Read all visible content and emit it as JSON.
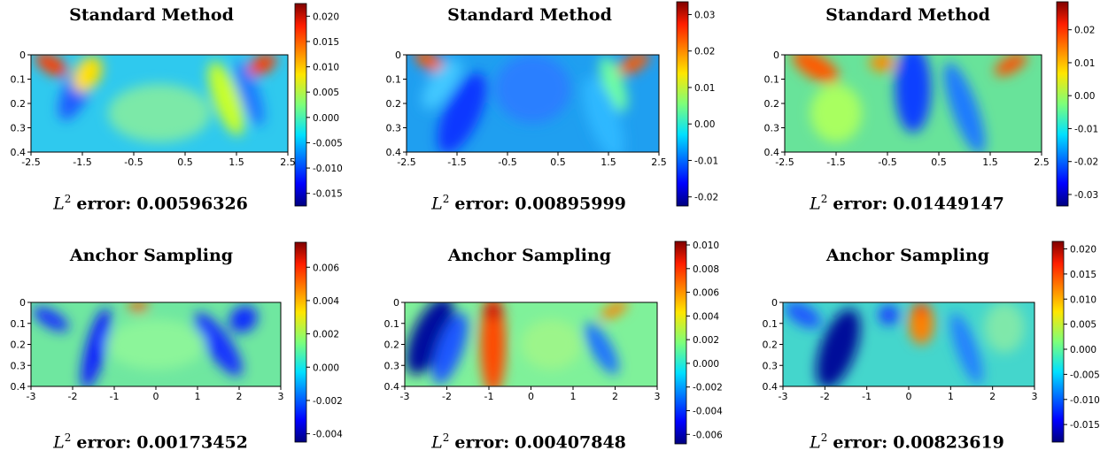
{
  "chart_data": [
    {
      "type": "heatmap",
      "title": "Standard Method",
      "x_ticks": [
        "-2.5",
        "-1.5",
        "-0.5",
        "0.5",
        "1.5",
        "2.5"
      ],
      "y_ticks": [
        "0",
        "0.1",
        "0.2",
        "0.3",
        "0.4"
      ],
      "xlim": [
        -2.5,
        2.5
      ],
      "ylim": [
        0.4,
        0
      ],
      "colorbar_ticks": [
        "0.020",
        "0.015",
        "0.010",
        "0.005",
        "0.000",
        "-0.005",
        "-0.010",
        "-0.015"
      ],
      "colorbar_range": [
        -0.0175,
        0.0225
      ],
      "error_label": "L",
      "error_exp": "2",
      "error_word": "error:",
      "error_value": "0.00596326"
    },
    {
      "type": "heatmap",
      "title": "Standard Method",
      "x_ticks": [
        "-2.5",
        "-1.5",
        "-0.5",
        "0.5",
        "1.5",
        "2.5"
      ],
      "y_ticks": [
        "0",
        "0.1",
        "0.2",
        "0.3",
        "0.4"
      ],
      "xlim": [
        -2.5,
        2.5
      ],
      "ylim": [
        0.4,
        0
      ],
      "colorbar_ticks": [
        "0.03",
        "0.02",
        "0.01",
        "0.00",
        "-0.01",
        "-0.02"
      ],
      "colorbar_range": [
        -0.0225,
        0.0335
      ],
      "error_label": "L",
      "error_exp": "2",
      "error_word": "error:",
      "error_value": "0.00895999"
    },
    {
      "type": "heatmap",
      "title": "Standard Method",
      "x_ticks": [
        "-2.5",
        "-1.5",
        "-0.5",
        "0.5",
        "1.5",
        "2.5"
      ],
      "y_ticks": [
        "0",
        "0.1",
        "0.2",
        "0.3",
        "0.4"
      ],
      "xlim": [
        -2.5,
        2.5
      ],
      "ylim": [
        0.4,
        0
      ],
      "colorbar_ticks": [
        "0.02",
        "0.01",
        "0.00",
        "-0.01",
        "-0.02",
        "-0.03"
      ],
      "colorbar_range": [
        -0.0335,
        0.0285
      ],
      "error_label": "L",
      "error_exp": "2",
      "error_word": "error:",
      "error_value": "0.01449147"
    },
    {
      "type": "heatmap",
      "title": "Anchor Sampling",
      "x_ticks": [
        "-3",
        "-2",
        "-1",
        "0",
        "1",
        "2",
        "3"
      ],
      "y_ticks": [
        "0",
        "0.1",
        "0.2",
        "0.3",
        "0.4"
      ],
      "xlim": [
        -3,
        3
      ],
      "ylim": [
        0.4,
        0
      ],
      "colorbar_ticks": [
        "0.006",
        "0.004",
        "0.002",
        "0.000",
        "-0.002",
        "-0.004"
      ],
      "colorbar_range": [
        -0.0045,
        0.0075
      ],
      "error_label": "L",
      "error_exp": "2",
      "error_word": "error:",
      "error_value": "0.00173452"
    },
    {
      "type": "heatmap",
      "title": "Anchor Sampling",
      "x_ticks": [
        "-3",
        "-2",
        "-1",
        "0",
        "1",
        "2",
        "3"
      ],
      "y_ticks": [
        "0",
        "0.1",
        "0.2",
        "0.3",
        "0.4"
      ],
      "xlim": [
        -3,
        3
      ],
      "ylim": [
        0.4,
        0
      ],
      "colorbar_ticks": [
        "0.010",
        "0.008",
        "0.006",
        "0.004",
        "0.002",
        "0.000",
        "-0.002",
        "-0.004",
        "-0.006"
      ],
      "colorbar_range": [
        -0.0068,
        0.0103
      ],
      "error_label": "L",
      "error_exp": "2",
      "error_word": "error:",
      "error_value": "0.00407848"
    },
    {
      "type": "heatmap",
      "title": "Anchor Sampling",
      "x_ticks": [
        "-3",
        "-2",
        "-1",
        "0",
        "1",
        "2",
        "3"
      ],
      "y_ticks": [
        "0",
        "0.1",
        "0.2",
        "0.3",
        "0.4"
      ],
      "xlim": [
        -3,
        3
      ],
      "ylim": [
        0.4,
        0
      ],
      "colorbar_ticks": [
        "0.020",
        "0.015",
        "0.010",
        "0.005",
        "0.000",
        "-0.005",
        "-0.010",
        "-0.015"
      ],
      "colorbar_range": [
        -0.0185,
        0.0215
      ],
      "error_label": "L",
      "error_exp": "2",
      "error_word": "error:",
      "error_value": "0.00823619"
    }
  ]
}
